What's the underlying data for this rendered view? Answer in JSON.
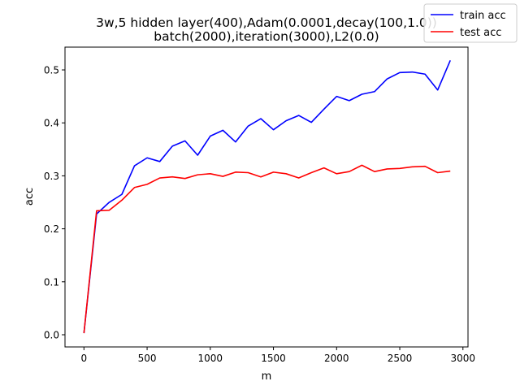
{
  "chart_data": {
    "type": "line",
    "title_line1": "3w,5 hidden layer(400),Adam(0.0001,decay(100,1.0))",
    "title_line2": "batch(2000),iteration(3000),L2(0.0)",
    "xlabel": "m",
    "ylabel": "acc",
    "xlim": [
      -150,
      3040
    ],
    "ylim": [
      -0.023,
      0.543
    ],
    "xticks": [
      0,
      500,
      1000,
      1500,
      2000,
      2500,
      3000
    ],
    "xtick_labels": [
      "0",
      "500",
      "1000",
      "1500",
      "2000",
      "2500",
      "3000"
    ],
    "yticks": [
      0.0,
      0.1,
      0.2,
      0.3,
      0.4,
      0.5
    ],
    "ytick_labels": [
      "0.0",
      "0.1",
      "0.2",
      "0.3",
      "0.4",
      "0.5"
    ],
    "legend_position": "top-right",
    "x": [
      0,
      100,
      200,
      300,
      400,
      500,
      600,
      700,
      800,
      900,
      1000,
      1100,
      1200,
      1300,
      1400,
      1500,
      1600,
      1700,
      1800,
      1900,
      2000,
      2100,
      2200,
      2300,
      2400,
      2500,
      2600,
      2700,
      2800,
      2900
    ],
    "series": [
      {
        "name": "train acc",
        "color": "#0000ff",
        "values": [
          0.003,
          0.228,
          0.25,
          0.265,
          0.319,
          0.334,
          0.327,
          0.356,
          0.366,
          0.339,
          0.375,
          0.386,
          0.364,
          0.394,
          0.408,
          0.387,
          0.404,
          0.414,
          0.401,
          0.426,
          0.45,
          0.442,
          0.454,
          0.459,
          0.483,
          0.495,
          0.496,
          0.492,
          0.462,
          0.518
        ]
      },
      {
        "name": "test acc",
        "color": "#ff0000",
        "values": [
          0.003,
          0.234,
          0.235,
          0.254,
          0.278,
          0.284,
          0.296,
          0.298,
          0.295,
          0.302,
          0.304,
          0.299,
          0.307,
          0.306,
          0.298,
          0.307,
          0.304,
          0.296,
          0.306,
          0.315,
          0.304,
          0.308,
          0.32,
          0.308,
          0.313,
          0.314,
          0.317,
          0.318,
          0.306,
          0.309
        ]
      }
    ]
  }
}
